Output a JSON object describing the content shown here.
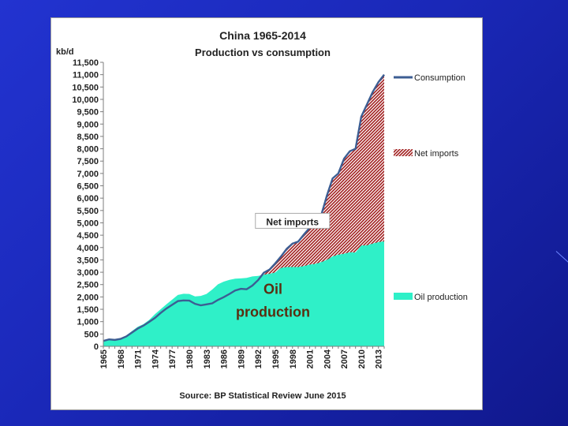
{
  "chart_data": {
    "type": "area",
    "title": "China 1965-2014",
    "subtitle": "Production vs consumption",
    "ylabel": "kb/d",
    "source": "Source: BP Statistical Review June 2015",
    "ylim": [
      0,
      11500
    ],
    "ytick_step": 500,
    "xlim": [
      1965,
      2014
    ],
    "x_ticks": [
      1965,
      1968,
      1971,
      1974,
      1977,
      1980,
      1983,
      1986,
      1989,
      1992,
      1995,
      1998,
      2001,
      2004,
      2007,
      2010,
      2013
    ],
    "grid": false,
    "legend_position": "right",
    "years": [
      1965,
      1966,
      1967,
      1968,
      1969,
      1970,
      1971,
      1972,
      1973,
      1974,
      1975,
      1976,
      1977,
      1978,
      1979,
      1980,
      1981,
      1982,
      1983,
      1984,
      1985,
      1986,
      1987,
      1988,
      1989,
      1990,
      1991,
      1992,
      1993,
      1994,
      1995,
      1996,
      1997,
      1998,
      1999,
      2000,
      2001,
      2002,
      2003,
      2004,
      2005,
      2006,
      2007,
      2008,
      2009,
      2010,
      2011,
      2012,
      2013,
      2014
    ],
    "series": [
      {
        "name": "Consumption",
        "color": "#3c5e93",
        "values": [
          220,
          280,
          260,
          300,
          400,
          560,
          720,
          840,
          990,
          1150,
          1350,
          1530,
          1680,
          1830,
          1860,
          1850,
          1720,
          1660,
          1700,
          1740,
          1880,
          1990,
          2120,
          2260,
          2330,
          2310,
          2460,
          2680,
          2980,
          3110,
          3360,
          3640,
          3950,
          4160,
          4240,
          4530,
          4800,
          4900,
          5300,
          6100,
          6800,
          7000,
          7600,
          7900,
          8000,
          9300,
          9800,
          10300,
          10700,
          11000
        ],
        "fill": "#a11f1f"
      },
      {
        "name": "Oil production",
        "color": "#2ff0c8",
        "values": [
          230,
          290,
          280,
          300,
          440,
          620,
          790,
          900,
          1070,
          1300,
          1500,
          1700,
          1890,
          2080,
          2130,
          2120,
          2020,
          2040,
          2120,
          2300,
          2510,
          2620,
          2690,
          2740,
          2750,
          2770,
          2830,
          2850,
          2900,
          2940,
          2990,
          3180,
          3210,
          3210,
          3210,
          3250,
          3310,
          3340,
          3410,
          3500,
          3640,
          3710,
          3750,
          3810,
          3800,
          4080,
          4090,
          4160,
          4220,
          4250
        ]
      }
    ],
    "legend": [
      {
        "label": "Consumption",
        "kind": "line",
        "color": "#3c5e93"
      },
      {
        "label": "Net imports",
        "kind": "hatch",
        "color": "#a11f1f"
      },
      {
        "label": "Oil production",
        "kind": "fill",
        "color": "#2ff0c8"
      }
    ],
    "annotations": [
      {
        "text": "Net imports",
        "boxed": true,
        "year": 1998.0,
        "value": 4970
      },
      {
        "text": "Oil",
        "boxed": false,
        "year": 1994.6,
        "value": 2130
      },
      {
        "text": "production",
        "boxed": false,
        "year": 1994.6,
        "value": 1200
      }
    ]
  }
}
